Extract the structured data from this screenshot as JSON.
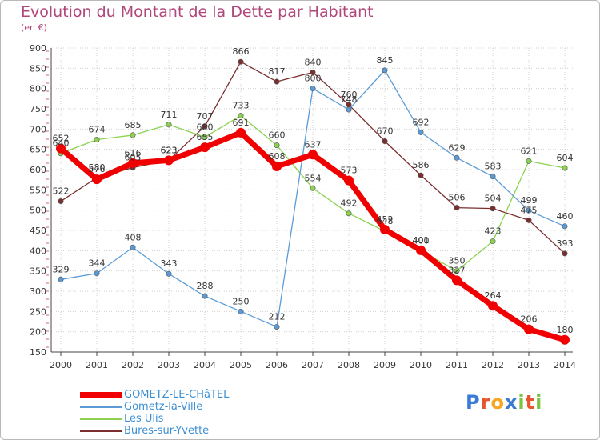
{
  "title": "Evolution du Montant de la Dette par Habitant",
  "unit": "(en €)",
  "logo": {
    "text": "Proxiti",
    "letters": [
      "P",
      "r",
      "o",
      "x",
      "i",
      "t",
      "i"
    ],
    "colors": [
      "#3a7bd5",
      "#e8542e",
      "#f5a623",
      "#3a7bd5",
      "#7cc243",
      "#e8542e",
      "#7cc243"
    ]
  },
  "chart_data": {
    "type": "line",
    "x": [
      "2000",
      "2001",
      "2002",
      "2003",
      "2004",
      "2005",
      "2006",
      "2007",
      "2008",
      "2009",
      "2010",
      "2011",
      "2012",
      "2013",
      "2014"
    ],
    "ylim": [
      150,
      900
    ],
    "yticks": [
      150,
      200,
      250,
      300,
      350,
      400,
      450,
      500,
      550,
      600,
      650,
      700,
      750,
      800,
      850,
      900
    ],
    "grid": true,
    "legend_position": "bottom-left",
    "series": [
      {
        "name": "Bures-sur-Yvette",
        "color": "#7a2e2e",
        "values": [
          522,
          580,
          605,
          623,
          707,
          866,
          817,
          840,
          760,
          670,
          586,
          506,
          504,
          475,
          393
        ]
      },
      {
        "name": "Les Ulis",
        "color": "#8ad250",
        "values": [
          640,
          674,
          685,
          711,
          680,
          733,
          660,
          554,
          492,
          448,
          400,
          350,
          423,
          621,
          604
        ]
      },
      {
        "name": "Gometz-la-Ville",
        "color": "#5b9bd5",
        "values": [
          329,
          344,
          408,
          343,
          288,
          250,
          212,
          800,
          748,
          845,
          692,
          629,
          583,
          499,
          460
        ]
      },
      {
        "name": "GOMETZ-LE-CHâTEL",
        "color": "#f00000",
        "values": [
          652,
          576,
          616,
          623,
          655,
          691,
          608,
          637,
          573,
          452,
          401,
          327,
          264,
          206,
          180
        ]
      }
    ],
    "labels": [
      {
        "series": "GOMETZ-LE-CHâTEL",
        "texts": [
          "652",
          "576",
          "616",
          "623",
          "655",
          "691",
          "608",
          "637",
          "573",
          "452",
          "401",
          "327",
          "264",
          "206",
          "180"
        ]
      },
      {
        "series": "Gometz-la-Ville",
        "texts": [
          "329",
          "344",
          "408",
          "343",
          "288",
          "250",
          "212",
          "800",
          "748",
          "845",
          "692",
          "629",
          "583",
          "499",
          "460"
        ]
      },
      {
        "series": "Les Ulis",
        "texts": [
          "640",
          "674",
          "685",
          "711",
          "680",
          "733",
          "660",
          "554",
          "492",
          "448",
          "400",
          "350",
          "423",
          "621",
          "604"
        ]
      },
      {
        "series": "Bures-sur-Yvette",
        "texts": [
          "522",
          "580",
          "605",
          "623",
          "707",
          "866",
          "817",
          "840",
          "760",
          "670",
          "586",
          "506",
          "504",
          "475",
          "393"
        ]
      }
    ],
    "legend": [
      "GOMETZ-LE-CHâTEL",
      "Gometz-la-Ville",
      "Les Ulis",
      "Bures-sur-Yvette"
    ]
  }
}
